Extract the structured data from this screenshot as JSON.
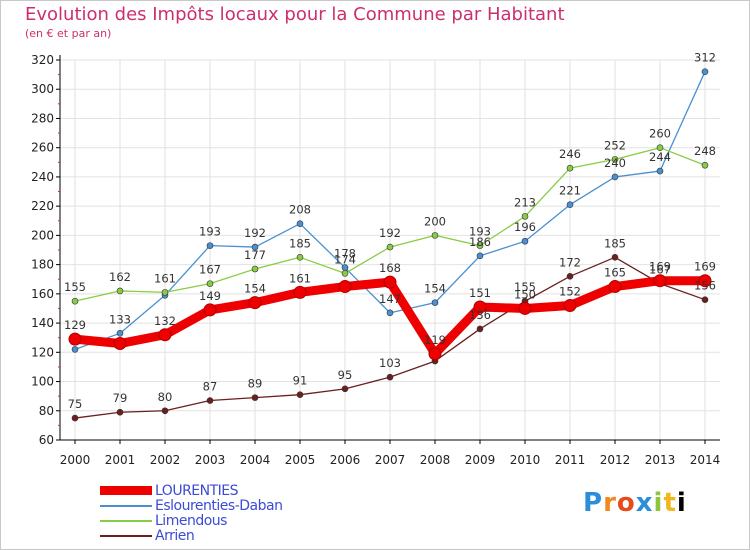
{
  "header": {
    "title": "Evolution des Impôts locaux pour la Commune par Habitant",
    "subtitle": "(en € et par an)"
  },
  "logo": {
    "letters": [
      "P",
      "r",
      "o",
      "x",
      "i",
      "t",
      "i"
    ]
  },
  "colors": {
    "title": "#cc2f6e",
    "legend_text": "#3b4bd6",
    "grid": "#e2e2e2",
    "axis": "#000000"
  },
  "chart_data": {
    "type": "line",
    "title": "Evolution des Impôts locaux pour la Commune par Habitant",
    "subtitle": "(en € et par an)",
    "x": [
      2000,
      2001,
      2002,
      2003,
      2004,
      2005,
      2006,
      2007,
      2008,
      2009,
      2010,
      2011,
      2012,
      2013,
      2014
    ],
    "ylim": [
      60,
      320
    ],
    "yticks": [
      60,
      80,
      100,
      120,
      140,
      160,
      180,
      200,
      220,
      240,
      260,
      280,
      300,
      320
    ],
    "grid": true,
    "legend_position": "bottom-left",
    "series": [
      {
        "name": "LOURENTIES",
        "color": "#ee0000",
        "values": [
          129,
          126,
          132,
          149,
          154,
          161,
          165,
          168,
          119,
          151,
          150,
          152,
          165,
          169,
          169
        ],
        "labels": [
          "129",
          "",
          "132",
          "149",
          "154",
          "161",
          "",
          "168",
          "119",
          "151",
          "150",
          "152",
          "165",
          "169",
          "169"
        ]
      },
      {
        "name": "Eslourenties-Daban",
        "color": "#4a90d0",
        "values": [
          122,
          133,
          159,
          193,
          192,
          208,
          178,
          147,
          154,
          186,
          196,
          221,
          240,
          244,
          312
        ],
        "labels": [
          "",
          "133",
          "",
          "193",
          "192",
          "208",
          "178",
          "147",
          "154",
          "186",
          "196",
          "221",
          "240",
          "244",
          "312"
        ]
      },
      {
        "name": "Limendous",
        "color": "#88cc44",
        "values": [
          155,
          162,
          161,
          167,
          177,
          185,
          174,
          192,
          200,
          193,
          213,
          246,
          252,
          260,
          248
        ],
        "labels": [
          "155",
          "162",
          "161",
          "167",
          "177",
          "185",
          "174",
          "192",
          "200",
          "193",
          "213",
          "246",
          "252",
          "260",
          "248"
        ]
      },
      {
        "name": "Arrien",
        "color": "#6b1f1f",
        "values": [
          75,
          79,
          80,
          87,
          89,
          91,
          95,
          103,
          114,
          136,
          155,
          172,
          185,
          167,
          156
        ],
        "labels": [
          "75",
          "79",
          "80",
          "87",
          "89",
          "91",
          "95",
          "103",
          "",
          "136",
          "155",
          "172",
          "185",
          "167",
          "156"
        ]
      }
    ]
  }
}
